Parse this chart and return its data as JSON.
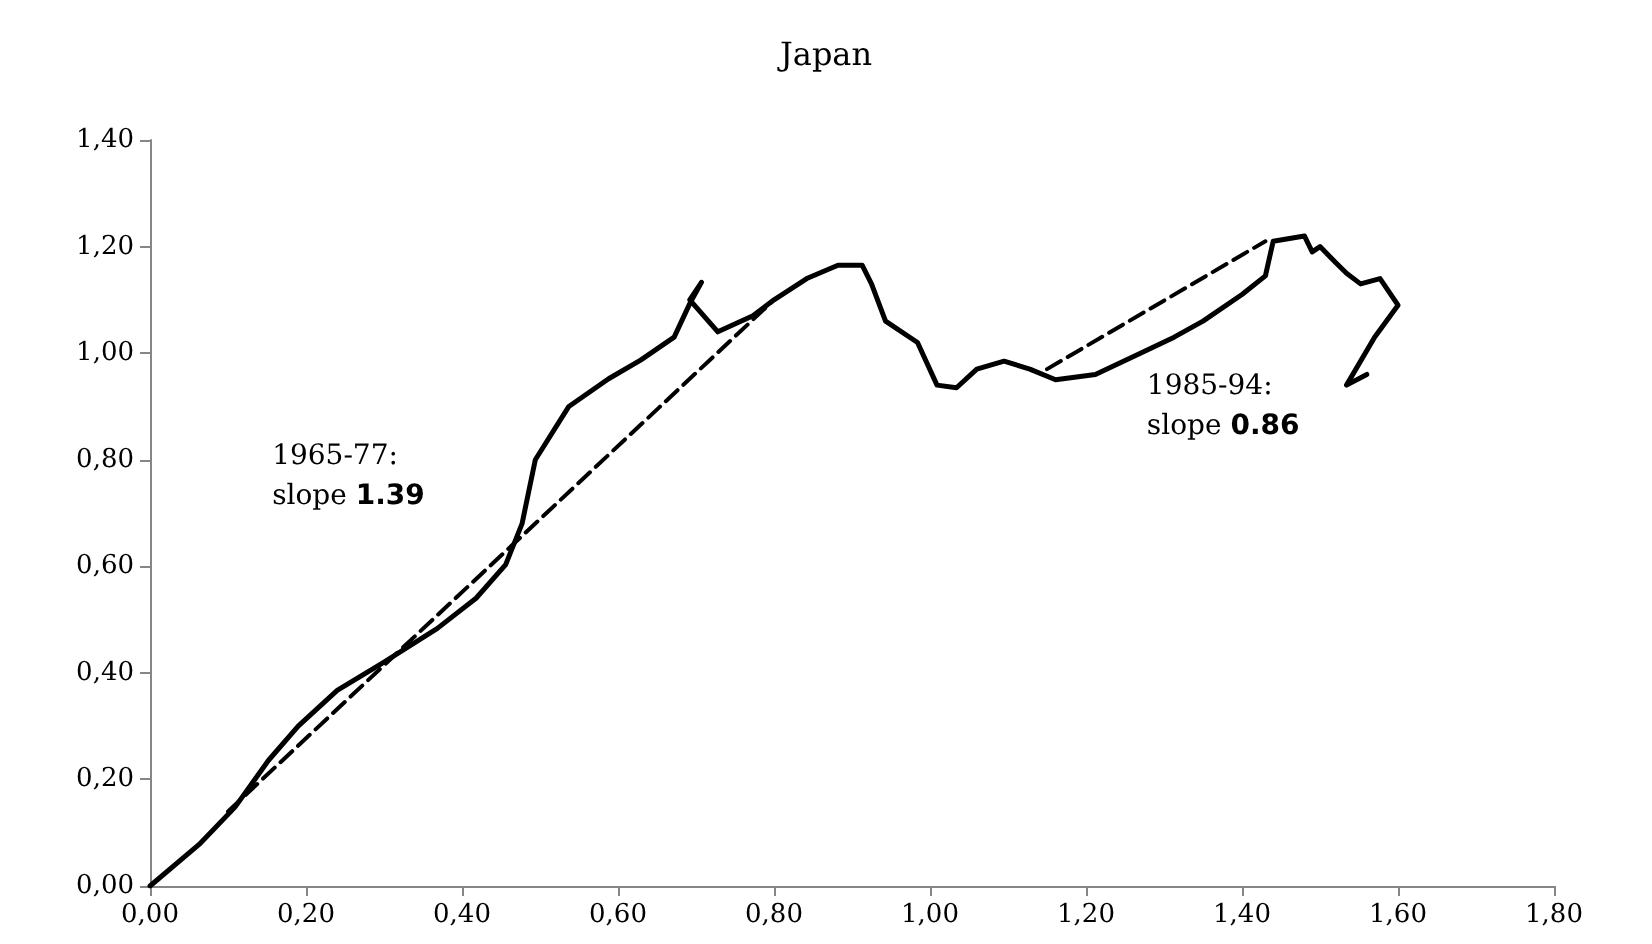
{
  "chart_data": {
    "type": "line",
    "title": "Japan",
    "xlim": [
      0,
      1.8
    ],
    "xticks": [
      {
        "value": 0,
        "label": "0,00"
      },
      {
        "value": 0.2,
        "label": "0,20"
      },
      {
        "value": 0.4,
        "label": "0,40"
      },
      {
        "value": 0.6,
        "label": "0,60"
      },
      {
        "value": 0.8,
        "label": "0,80"
      },
      {
        "value": 1,
        "label": "1,00"
      },
      {
        "value": 1.2,
        "label": "1,20"
      },
      {
        "value": 1.4,
        "label": "1,40"
      },
      {
        "value": 1.6,
        "label": "1,60"
      },
      {
        "value": 1.8,
        "label": "1,80"
      }
    ],
    "ylim": [
      0,
      1.4
    ],
    "yticks": [
      {
        "value": 0,
        "label": "0,00"
      },
      {
        "value": 0.2,
        "label": "0,20"
      },
      {
        "value": 0.4,
        "label": "0,40"
      },
      {
        "value": 0.6,
        "label": "0,60"
      },
      {
        "value": 0.8,
        "label": "0,80"
      },
      {
        "value": 1,
        "label": "1,00"
      },
      {
        "value": 1.2,
        "label": "1,20"
      },
      {
        "value": 1.4,
        "label": "1,40"
      }
    ],
    "grid": false,
    "marker": "none",
    "series": [
      {
        "color": "#000000",
        "line_style": "solid",
        "x": [
          0,
          0.063,
          0.109,
          0.152,
          0.19,
          0.24,
          0.3,
          0.368,
          0.418,
          0.456,
          0.477,
          0.494,
          0.537,
          0.588,
          0.629,
          0.672,
          0.692,
          0.707,
          0.692,
          0.728,
          0.773,
          0.8,
          0.842,
          0.882,
          0.913,
          0.925,
          0.943,
          0.984,
          1.009,
          1.034,
          1.06,
          1.095,
          1.128,
          1.161,
          1.212,
          1.263,
          1.313,
          1.35,
          1.4,
          1.43,
          1.44,
          1.48,
          1.49,
          1.5,
          1.52,
          1.534,
          1.552,
          1.577,
          1.6,
          1.57,
          1.534,
          1.56
        ],
        "values": [
          0,
          0.078,
          0.148,
          0.236,
          0.3,
          0.367,
          0.42,
          0.483,
          0.54,
          0.603,
          0.68,
          0.8,
          0.9,
          0.952,
          0.987,
          1.03,
          1.093,
          1.133,
          1.1,
          1.04,
          1.07,
          1.1,
          1.14,
          1.165,
          1.165,
          1.13,
          1.06,
          1.02,
          0.94,
          0.935,
          0.97,
          0.985,
          0.97,
          0.95,
          0.96,
          0.995,
          1.03,
          1.06,
          1.11,
          1.145,
          1.21,
          1.22,
          1.19,
          1.2,
          1.17,
          1.15,
          1.13,
          1.14,
          1.09,
          1.03,
          0.94,
          0.96
        ]
      },
      {
        "color": "#000000",
        "line_style": "dashed",
        "x": [
          0.1,
          0.8
        ],
        "values": [
          0.14,
          1.1
        ]
      },
      {
        "color": "#000000",
        "line_style": "dashed",
        "x": [
          1.15,
          1.43
        ],
        "values": [
          0.97,
          1.21
        ]
      }
    ],
    "annotations": [
      "1965-77: slope 1.39",
      "1985-94: slope 0.86"
    ]
  }
}
